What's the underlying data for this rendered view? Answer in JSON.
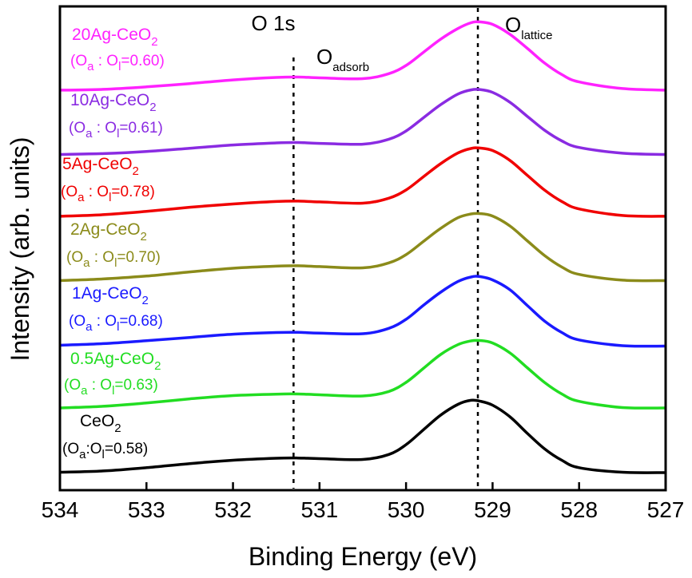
{
  "chart_data": {
    "type": "line",
    "title": "O 1s",
    "xlabel": "Binding Energy (eV)",
    "ylabel": "Intensity (arb. units)",
    "xlim": [
      534,
      527
    ],
    "x_inverted": true,
    "x_ticks": [
      534,
      533,
      532,
      531,
      530,
      529,
      528,
      527
    ],
    "y_ticks_visible": false,
    "x": [
      534,
      533.5,
      533,
      532.5,
      532,
      531.5,
      531.25,
      531,
      530.5,
      530.2,
      530,
      529.8,
      529.6,
      529.4,
      529.25,
      529.15,
      529.0,
      528.8,
      528.6,
      528.4,
      528.2,
      528,
      527.5,
      527
    ],
    "reference_lines": [
      {
        "name": "O_adsorb",
        "x": 531.3
      },
      {
        "name": "O_lattice",
        "x": 529.17
      }
    ],
    "peak_labels": [
      {
        "main": "O",
        "sub": "adsorb"
      },
      {
        "main": "O",
        "sub": "lattice"
      }
    ],
    "series": [
      {
        "name": "20Ag-CeO2",
        "formula": "20Ag-CeO",
        "formula_sub": "2",
        "ratio_text": "(Oa : Ol=0.60)",
        "ratio": "0.60",
        "ratio_sep": " : ",
        "color": "#ff22ff",
        "values": [
          0.2,
          0.3,
          0.6,
          1.0,
          1.45,
          1.75,
          1.8,
          1.7,
          1.6,
          2.2,
          3.2,
          4.8,
          6.4,
          7.7,
          8.4,
          8.5,
          8.2,
          7.0,
          5.3,
          3.5,
          2.1,
          1.2,
          0.4,
          0.2
        ]
      },
      {
        "name": "10Ag-CeO2",
        "formula": "10Ag-CeO",
        "formula_sub": "2",
        "ratio_text": "(Oa : Ol=0.61)",
        "ratio": "0.61",
        "ratio_sep": " : ",
        "color": "#8a2be2",
        "values": [
          0.15,
          0.25,
          0.5,
          0.9,
          1.3,
          1.55,
          1.6,
          1.5,
          1.4,
          2.0,
          3.0,
          4.6,
          6.2,
          7.5,
          8.0,
          8.05,
          7.7,
          6.5,
          4.8,
          3.1,
          1.8,
          1.0,
          0.3,
          0.15
        ]
      },
      {
        "name": "5Ag-CeO2",
        "formula": "5Ag-CeO",
        "formula_sub": "2",
        "ratio_text": "(Oa : Ol=0.78)",
        "ratio": "0.78",
        "ratio_sep": " : ",
        "color": "#f00000",
        "values": [
          0.2,
          0.4,
          0.8,
          1.3,
          1.7,
          2.0,
          2.05,
          1.95,
          1.8,
          2.4,
          3.4,
          5.0,
          6.6,
          7.9,
          8.45,
          8.5,
          8.2,
          7.0,
          5.2,
          3.4,
          2.0,
          1.1,
          0.3,
          0.2
        ]
      },
      {
        "name": "2Ag-CeO2",
        "formula": "2Ag-CeO",
        "formula_sub": "2",
        "ratio_text": "(Oa : Ol=0.70)",
        "ratio": "0.70",
        "ratio_sep": " : ",
        "color": "#8b8b1a",
        "values": [
          0.15,
          0.35,
          0.7,
          1.2,
          1.65,
          1.9,
          1.95,
          1.85,
          1.7,
          2.3,
          3.3,
          4.9,
          6.5,
          7.8,
          8.25,
          8.3,
          8.0,
          6.8,
          5.0,
          3.2,
          1.8,
          0.9,
          0.2,
          0.15
        ]
      },
      {
        "name": "1Ag-CeO2",
        "formula": "1Ag-CeO",
        "formula_sub": "2",
        "ratio_text": "(Oa : Ol=0.68)",
        "ratio": "0.68",
        "ratio_sep": " : ",
        "color": "#1a1aff",
        "values": [
          0.15,
          0.35,
          0.7,
          1.1,
          1.5,
          1.7,
          1.72,
          1.62,
          1.55,
          2.2,
          3.3,
          5.0,
          6.6,
          7.9,
          8.45,
          8.5,
          8.1,
          6.9,
          5.0,
          3.1,
          1.7,
          0.8,
          0.1,
          0.05
        ]
      },
      {
        "name": "0.5Ag-CeO2",
        "formula": "0.5Ag-CeO",
        "formula_sub": "2",
        "ratio_text": "(Oa : Ol=0.63)",
        "ratio": "0.63",
        "ratio_sep": " : ",
        "color": "#22dd22",
        "values": [
          0.1,
          0.3,
          0.7,
          1.2,
          1.6,
          1.78,
          1.8,
          1.7,
          1.55,
          2.1,
          3.2,
          4.9,
          6.6,
          7.8,
          8.25,
          8.3,
          8.0,
          6.8,
          5.0,
          3.2,
          1.8,
          0.9,
          0.15,
          0.1
        ]
      },
      {
        "name": "CeO2",
        "formula": "CeO",
        "formula_sub": "2",
        "ratio_text": "(Oa:Ol=0.58)",
        "ratio": "0.58",
        "ratio_sep": ":",
        "color": "#000000",
        "values": [
          0.05,
          0.2,
          0.6,
          1.1,
          1.5,
          1.75,
          1.78,
          1.7,
          1.6,
          2.2,
          3.4,
          5.2,
          7.0,
          8.3,
          8.8,
          8.7,
          8.2,
          6.8,
          4.8,
          2.9,
          1.5,
          0.6,
          0.05,
          0.0
        ]
      }
    ]
  }
}
